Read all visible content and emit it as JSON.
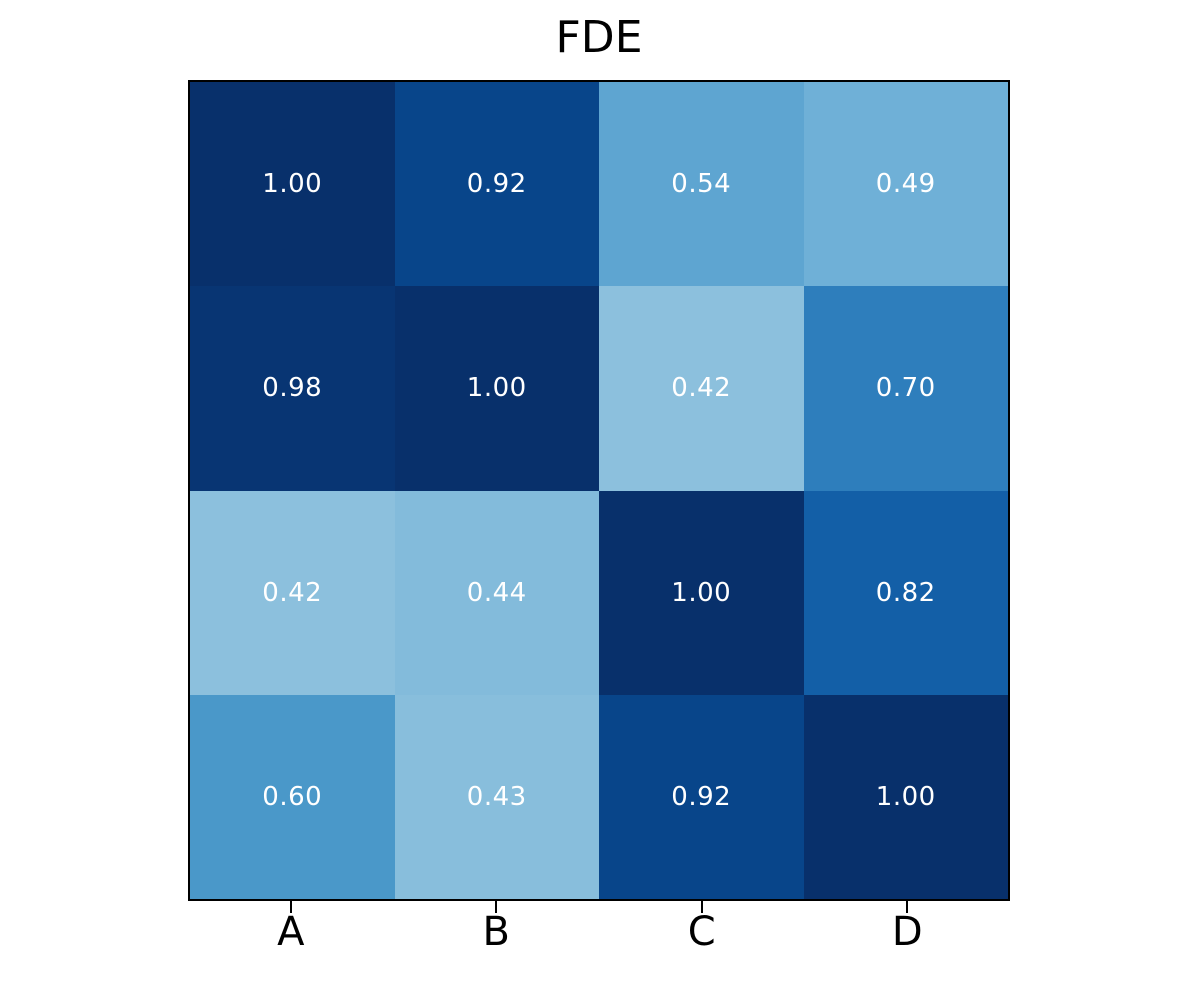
{
  "page": {
    "background_color": "#ffffff"
  },
  "chart_data": {
    "type": "heatmap",
    "title": "FDE",
    "x_categories": [
      "A",
      "B",
      "C",
      "D"
    ],
    "y_categories": [],
    "matrix": [
      [
        1.0,
        0.92,
        0.54,
        0.49
      ],
      [
        0.98,
        1.0,
        0.42,
        0.7
      ],
      [
        0.42,
        0.44,
        1.0,
        0.82
      ],
      [
        0.6,
        0.43,
        0.92,
        1.0
      ]
    ],
    "value_decimals": 2,
    "vmin": 0,
    "vmax": 1,
    "colormap": "Blues",
    "colormap_anchors": [
      "#f7fbff",
      "#deebf7",
      "#c6dbef",
      "#9ecae1",
      "#6baed6",
      "#4292c6",
      "#2171b5",
      "#08519c",
      "#08306b"
    ],
    "annotation_color": "#ffffff",
    "frame_color": "#000000",
    "tick_color": "#000000",
    "grid": false,
    "legend": "none"
  }
}
